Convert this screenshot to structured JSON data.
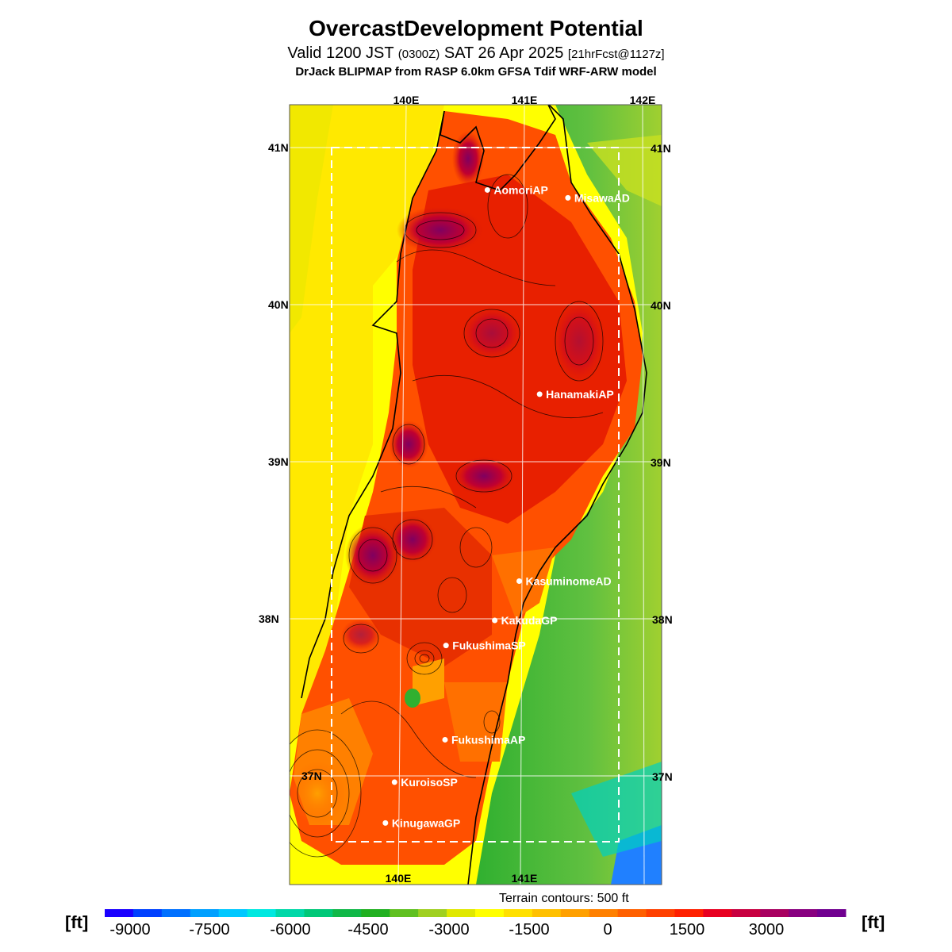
{
  "title": "OvercastDevelopment Potential",
  "subtitle": {
    "valid": "Valid 1200 JST",
    "utc": "(0300Z)",
    "date": "SAT 26 Apr 2025",
    "fcst": "[21hrFcst@1127z]"
  },
  "model": "DrJack BLIPMAP from RASP 6.0km GFSA Tdif WRF-ARW model",
  "axes": {
    "top_lon": [
      "140E",
      "141E",
      "142E"
    ],
    "bottom_lon": [
      "140E",
      "141E"
    ],
    "left_lat": [
      "41N",
      "40N",
      "39N",
      "38N",
      "37N"
    ],
    "right_lat": [
      "41N",
      "40N",
      "39N",
      "38N",
      "37N"
    ]
  },
  "sites": [
    {
      "name": "AomoriAP",
      "lon": 140.69,
      "lat": 40.73
    },
    {
      "name": "MisawaAD",
      "lon": 141.37,
      "lat": 40.68
    },
    {
      "name": "HanamakiAP",
      "lon": 141.14,
      "lat": 39.43
    },
    {
      "name": "KasuminomeAD",
      "lon": 140.98,
      "lat": 38.24
    },
    {
      "name": "KakudaGP",
      "lon": 140.78,
      "lat": 37.99
    },
    {
      "name": "FukushimaSP",
      "lon": 140.38,
      "lat": 37.83
    },
    {
      "name": "FukushimaAP",
      "lon": 140.38,
      "lat": 37.23
    },
    {
      "name": "KuroisoSP",
      "lon": 139.97,
      "lat": 36.96
    },
    {
      "name": "KinugawaGP",
      "lon": 139.9,
      "lat": 36.7
    }
  ],
  "terrain_note": "Terrain contours: 500 ft",
  "legend": {
    "unit": "[ft]",
    "labels": [
      "-9000",
      "-7500",
      "-6000",
      "-4500",
      "-3000",
      "-1500",
      "0",
      "1500",
      "3000"
    ],
    "colors": [
      "#1a00ff",
      "#0040ff",
      "#0070ff",
      "#00a0ff",
      "#00c8ff",
      "#00e8e0",
      "#00d8a8",
      "#00c878",
      "#10b848",
      "#20b020",
      "#60c020",
      "#a0d020",
      "#e0e800",
      "#ffff00",
      "#ffe000",
      "#ffc000",
      "#ffa000",
      "#ff8000",
      "#ff6000",
      "#ff4000",
      "#ff2000",
      "#e80020",
      "#c80040",
      "#a80060",
      "#880080",
      "#700090"
    ]
  },
  "colors": {
    "sea_west": "#ffff00",
    "sea_east": "#40c040",
    "land_mid": "#ff6000",
    "land_high": "#e02000",
    "peak": "#800060"
  }
}
